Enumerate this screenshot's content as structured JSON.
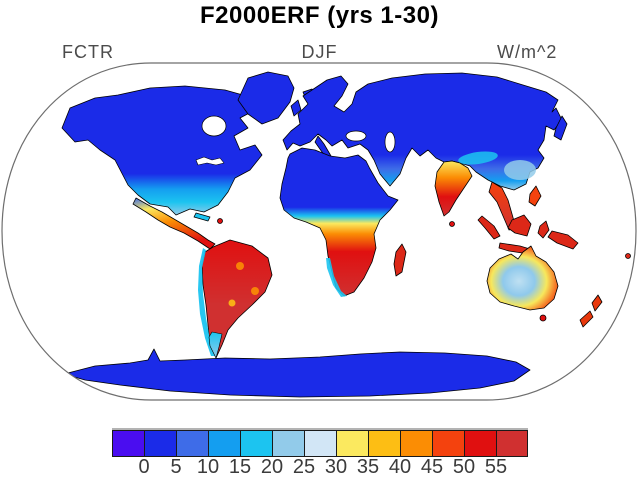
{
  "title": "F2000ERF (yrs 1-30)",
  "labels": {
    "left": "FCTR",
    "center": "DJF",
    "units": "W/m^2"
  },
  "colorbar": {
    "tick_labels": [
      "0",
      "5",
      "10",
      "15",
      "20",
      "25",
      "30",
      "35",
      "40",
      "45",
      "50",
      "55"
    ],
    "colors": [
      "#4A0DF0",
      "#1B2BE8",
      "#3E6CE8",
      "#149EF0",
      "#1CC4F0",
      "#92CBEA",
      "#D2E6F6",
      "#FBE95F",
      "#FDBE14",
      "#FB8D04",
      "#F4420E",
      "#E01010",
      "#D03030"
    ]
  },
  "chart_data": {
    "type": "heatmap",
    "title": "F2000ERF (yrs 1-30)",
    "panel_label_left": "FCTR",
    "panel_label_center": "DJF",
    "units": "W/m^2",
    "projection": "Robinson world map, white ocean, black coastlines",
    "legend_position": "bottom",
    "colorbar_levels": [
      0,
      5,
      10,
      15,
      20,
      25,
      30,
      35,
      40,
      45,
      50,
      55
    ],
    "colorbar_colors": [
      "#4A0DF0",
      "#1B2BE8",
      "#3E6CE8",
      "#149EF0",
      "#1CC4F0",
      "#92CBEA",
      "#D2E6F6",
      "#FBE95F",
      "#FDBE14",
      "#FB8D04",
      "#F4420E",
      "#E01010",
      "#D03030"
    ],
    "region_values_w_m2": [
      {
        "region": "Canada / northern United States",
        "value": "0-10"
      },
      {
        "region": "Southern United States / Gulf coast fringe",
        "value": "10-25"
      },
      {
        "region": "Greenland",
        "value": "0-10"
      },
      {
        "region": "Mexico and Central America",
        "value": "25-55"
      },
      {
        "region": "Amazon / tropical South America",
        "value": "50->55"
      },
      {
        "region": "Andes mountain strip",
        "value": "10-25"
      },
      {
        "region": "Patagonia / southern tip of South America",
        "value": "5-20"
      },
      {
        "region": "Europe",
        "value": "0-10"
      },
      {
        "region": "Sahara / northern Africa",
        "value": "0-15"
      },
      {
        "region": "Sahel transition band",
        "value": "20-45"
      },
      {
        "region": "Tropical and southern Africa",
        "value": "50->55"
      },
      {
        "region": "Namibia coastal strip",
        "value": "15-25"
      },
      {
        "region": "Madagascar",
        "value": "45-55"
      },
      {
        "region": "Siberia / northern and central Asia",
        "value": "0-10"
      },
      {
        "region": "Southern China",
        "value": "10-30"
      },
      {
        "region": "Himalaya / Tibet strip",
        "value": "15-25"
      },
      {
        "region": "India",
        "value": "35-55"
      },
      {
        "region": "Southeast Asia, Indonesia, New Guinea",
        "value": "50->55"
      },
      {
        "region": "Australia interior / west",
        "value": "20-35"
      },
      {
        "region": "Australia northern and eastern coasts",
        "value": "45->55"
      },
      {
        "region": "New Zealand",
        "value": "40-55"
      },
      {
        "region": "Antarctica",
        "value": "0-10"
      }
    ]
  }
}
